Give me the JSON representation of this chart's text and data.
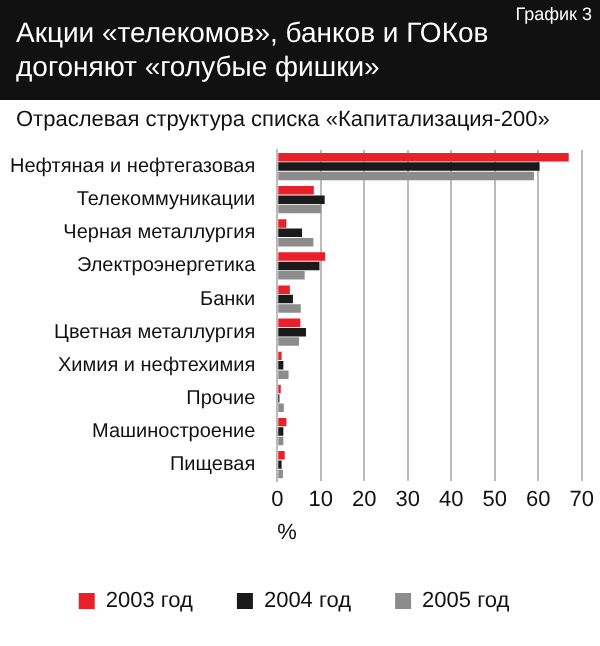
{
  "chart_data": {
    "type": "bar",
    "orientation": "horizontal",
    "title": "Акции «телекомов», банков и ГОКов догоняют «голубые фишки»",
    "subtitle": "Отраслевая структура списка «Капитализация-200»",
    "xlabel": "%",
    "annotations": [
      "График 3"
    ],
    "categories": [
      "Нефтяная и нефтегазовая",
      "Телекоммуникации",
      "Черная металлургия",
      "Электроэнергетика",
      "Банки",
      "Цветная металлургия",
      "Химия и нефтехимия",
      "Прочие",
      "Машиностроение",
      "Пищевая"
    ],
    "series": [
      {
        "name": "2003 год",
        "color": "#e8202a",
        "values": [
          67,
          8.4,
          2.1,
          11,
          2.9,
          5.3,
          1,
          0.8,
          2.1,
          1.7
        ]
      },
      {
        "name": "2004 год",
        "color": "#1a1a1a",
        "values": [
          60.3,
          10.9,
          5.7,
          9.7,
          3.6,
          6.6,
          1.4,
          0.5,
          1.4,
          1
        ]
      },
      {
        "name": "2005 год",
        "color": "#8c8c8c",
        "values": [
          59,
          10.1,
          8.3,
          6.3,
          5.4,
          5,
          2.6,
          1.5,
          1.4,
          1.3
        ]
      }
    ],
    "xlim": [
      0,
      70
    ],
    "xticks": [
      0,
      10,
      20,
      30,
      40,
      50,
      60,
      70
    ],
    "grid": "x",
    "legend": "bottom"
  }
}
